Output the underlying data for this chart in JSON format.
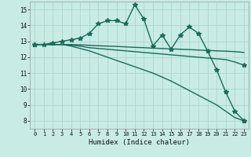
{
  "xlabel": "Humidex (Indice chaleur)",
  "ylabel": "",
  "xlim": [
    -0.5,
    23.5
  ],
  "ylim": [
    7.5,
    15.5
  ],
  "xticks": [
    0,
    1,
    2,
    3,
    4,
    5,
    6,
    7,
    8,
    9,
    10,
    11,
    12,
    13,
    14,
    15,
    16,
    17,
    18,
    19,
    20,
    21,
    22,
    23
  ],
  "yticks": [
    8,
    9,
    10,
    11,
    12,
    13,
    14,
    15
  ],
  "bg_color": "#c8ebe5",
  "grid_color": "#aad8cc",
  "line_color": "#1a6b5a",
  "line_width": 1.0,
  "marker": "*",
  "marker_size": 4,
  "series": [
    [
      12.8,
      12.8,
      12.9,
      13.0,
      13.1,
      13.2,
      13.5,
      14.1,
      14.3,
      14.3,
      14.1,
      15.3,
      14.4,
      12.7,
      13.4,
      12.5,
      13.4,
      13.9,
      13.5,
      12.4,
      11.2,
      9.8,
      8.6,
      8.0
    ],
    [
      12.8,
      12.8,
      12.8,
      12.8,
      12.8,
      12.78,
      12.75,
      12.72,
      12.7,
      12.68,
      12.65,
      12.62,
      12.6,
      12.57,
      12.55,
      12.52,
      12.5,
      12.48,
      12.45,
      12.43,
      12.4,
      12.38,
      12.35,
      12.3
    ],
    [
      12.8,
      12.8,
      12.8,
      12.8,
      12.7,
      12.55,
      12.4,
      12.2,
      12.0,
      11.8,
      11.6,
      11.4,
      11.2,
      11.0,
      10.75,
      10.5,
      10.2,
      9.9,
      9.6,
      9.3,
      9.0,
      8.6,
      8.2,
      8.0
    ],
    [
      12.8,
      12.8,
      12.8,
      12.8,
      12.75,
      12.7,
      12.6,
      12.55,
      12.5,
      12.45,
      12.4,
      12.35,
      12.3,
      12.25,
      12.2,
      12.15,
      12.1,
      12.05,
      12.0,
      11.95,
      11.9,
      11.85,
      11.7,
      11.5
    ]
  ],
  "marker_series": [
    0
  ],
  "marker_every": {
    "0": null,
    "1": null,
    "2": [
      0,
      23
    ],
    "3": [
      0,
      23
    ]
  }
}
